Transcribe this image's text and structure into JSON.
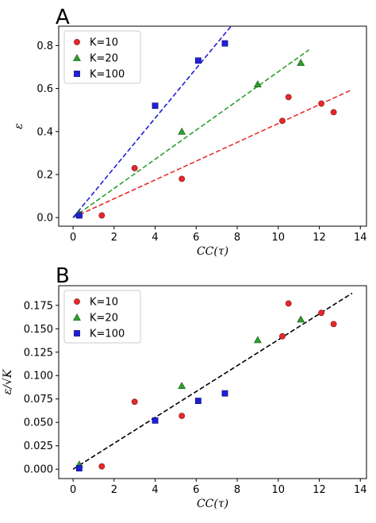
{
  "chart_data": [
    {
      "type": "scatter",
      "panel_label": "A",
      "xlabel": "CC(τ)",
      "ylabel": "ε",
      "xlim": [
        -0.7,
        14.3
      ],
      "ylim": [
        -0.04,
        0.89
      ],
      "xticks": [
        0,
        2,
        4,
        6,
        8,
        10,
        12,
        14
      ],
      "yticks": [
        0.0,
        0.2,
        0.4,
        0.6,
        0.8
      ],
      "ytick_labels": [
        "0.0",
        "0.2",
        "0.4",
        "0.6",
        "0.8"
      ],
      "legend_position": "top-left",
      "grid": false,
      "series": [
        {
          "name": "K=10",
          "color": "#e8282b",
          "marker": "circle",
          "x": [
            0.3,
            1.4,
            3.0,
            5.3,
            10.2,
            10.5,
            12.1,
            12.7
          ],
          "y": [
            0.01,
            0.01,
            0.23,
            0.18,
            0.45,
            0.56,
            0.53,
            0.49
          ],
          "fit": {
            "x": [
              0.0,
              13.6
            ],
            "y": [
              0.0,
              0.595
            ]
          }
        },
        {
          "name": "K=20",
          "color": "#2ca02c",
          "marker": "triangle",
          "x": [
            0.3,
            5.3,
            9.0,
            11.1
          ],
          "y": [
            0.02,
            0.4,
            0.62,
            0.72
          ],
          "fit": {
            "x": [
              0.0,
              11.5
            ],
            "y": [
              0.0,
              0.78
            ]
          }
        },
        {
          "name": "K=100",
          "color": "#1f1fd8",
          "marker": "square",
          "x": [
            0.3,
            4.0,
            6.1,
            7.4
          ],
          "y": [
            0.01,
            0.52,
            0.73,
            0.81
          ],
          "fit": {
            "x": [
              0.0,
              7.7
            ],
            "y": [
              0.0,
              0.89
            ]
          }
        }
      ]
    },
    {
      "type": "scatter",
      "panel_label": "B",
      "xlabel": "CC(τ)",
      "ylabel": "ε/√K",
      "xlim": [
        -0.7,
        14.3
      ],
      "ylim": [
        -0.01,
        0.196
      ],
      "xticks": [
        0,
        2,
        4,
        6,
        8,
        10,
        12,
        14
      ],
      "yticks": [
        0.0,
        0.025,
        0.05,
        0.075,
        0.1,
        0.125,
        0.15,
        0.175
      ],
      "ytick_labels": [
        "0.000",
        "0.025",
        "0.050",
        "0.075",
        "0.100",
        "0.125",
        "0.150",
        "0.175"
      ],
      "legend_position": "top-left",
      "grid": false,
      "fit": {
        "x": [
          0.0,
          13.6
        ],
        "y": [
          0.0,
          0.188
        ],
        "color": "#000000"
      },
      "series": [
        {
          "name": "K=10",
          "color": "#e8282b",
          "marker": "circle",
          "x": [
            0.3,
            1.4,
            3.0,
            5.3,
            10.2,
            10.5,
            12.1,
            12.7
          ],
          "y": [
            0.002,
            0.003,
            0.072,
            0.057,
            0.142,
            0.177,
            0.167,
            0.155
          ]
        },
        {
          "name": "K=20",
          "color": "#2ca02c",
          "marker": "triangle",
          "x": [
            0.3,
            5.3,
            9.0,
            11.1
          ],
          "y": [
            0.005,
            0.089,
            0.138,
            0.16
          ]
        },
        {
          "name": "K=100",
          "color": "#1f1fd8",
          "marker": "square",
          "x": [
            0.3,
            4.0,
            6.1,
            7.4
          ],
          "y": [
            0.001,
            0.052,
            0.073,
            0.081
          ]
        }
      ]
    }
  ]
}
